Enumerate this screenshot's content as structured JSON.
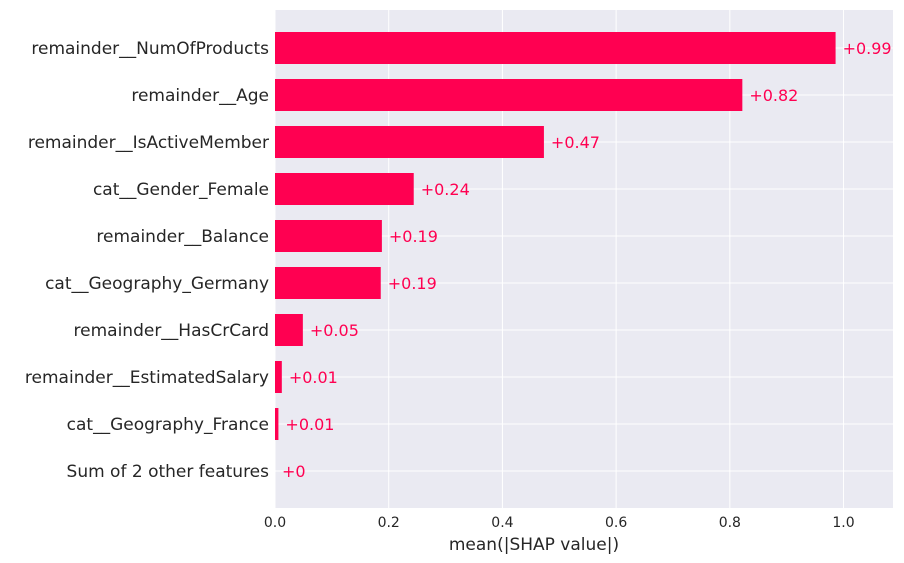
{
  "colors": {
    "bar": "#ff0051",
    "plot_background": "#eaeaf2",
    "grid": "#ffffff",
    "text": "#262626"
  },
  "chart_data": {
    "type": "bar",
    "orientation": "horizontal",
    "categories": [
      "remainder__NumOfProducts",
      "remainder__Age",
      "remainder__IsActiveMember",
      "cat__Gender_Female",
      "remainder__Balance",
      "cat__Geography_Germany",
      "remainder__HasCrCard",
      "remainder__EstimatedSalary",
      "cat__Geography_France",
      "Sum of 2 other features"
    ],
    "values": [
      0.986,
      0.822,
      0.473,
      0.244,
      0.188,
      0.186,
      0.049,
      0.012,
      0.006,
      0.0
    ],
    "value_labels": [
      "+0.99",
      "+0.82",
      "+0.47",
      "+0.24",
      "+0.19",
      "+0.19",
      "+0.05",
      "+0.01",
      "+0.01",
      "+0"
    ],
    "xlabel": "mean(|SHAP value|)",
    "ylabel": "",
    "title": "",
    "xlim": [
      0,
      1.087
    ],
    "xticks": [
      0.0,
      0.2,
      0.4,
      0.6,
      0.8,
      1.0
    ],
    "xtick_labels": [
      "0.0",
      "0.2",
      "0.4",
      "0.6",
      "0.8",
      "1.0"
    ],
    "grid": true,
    "legend": "none"
  }
}
